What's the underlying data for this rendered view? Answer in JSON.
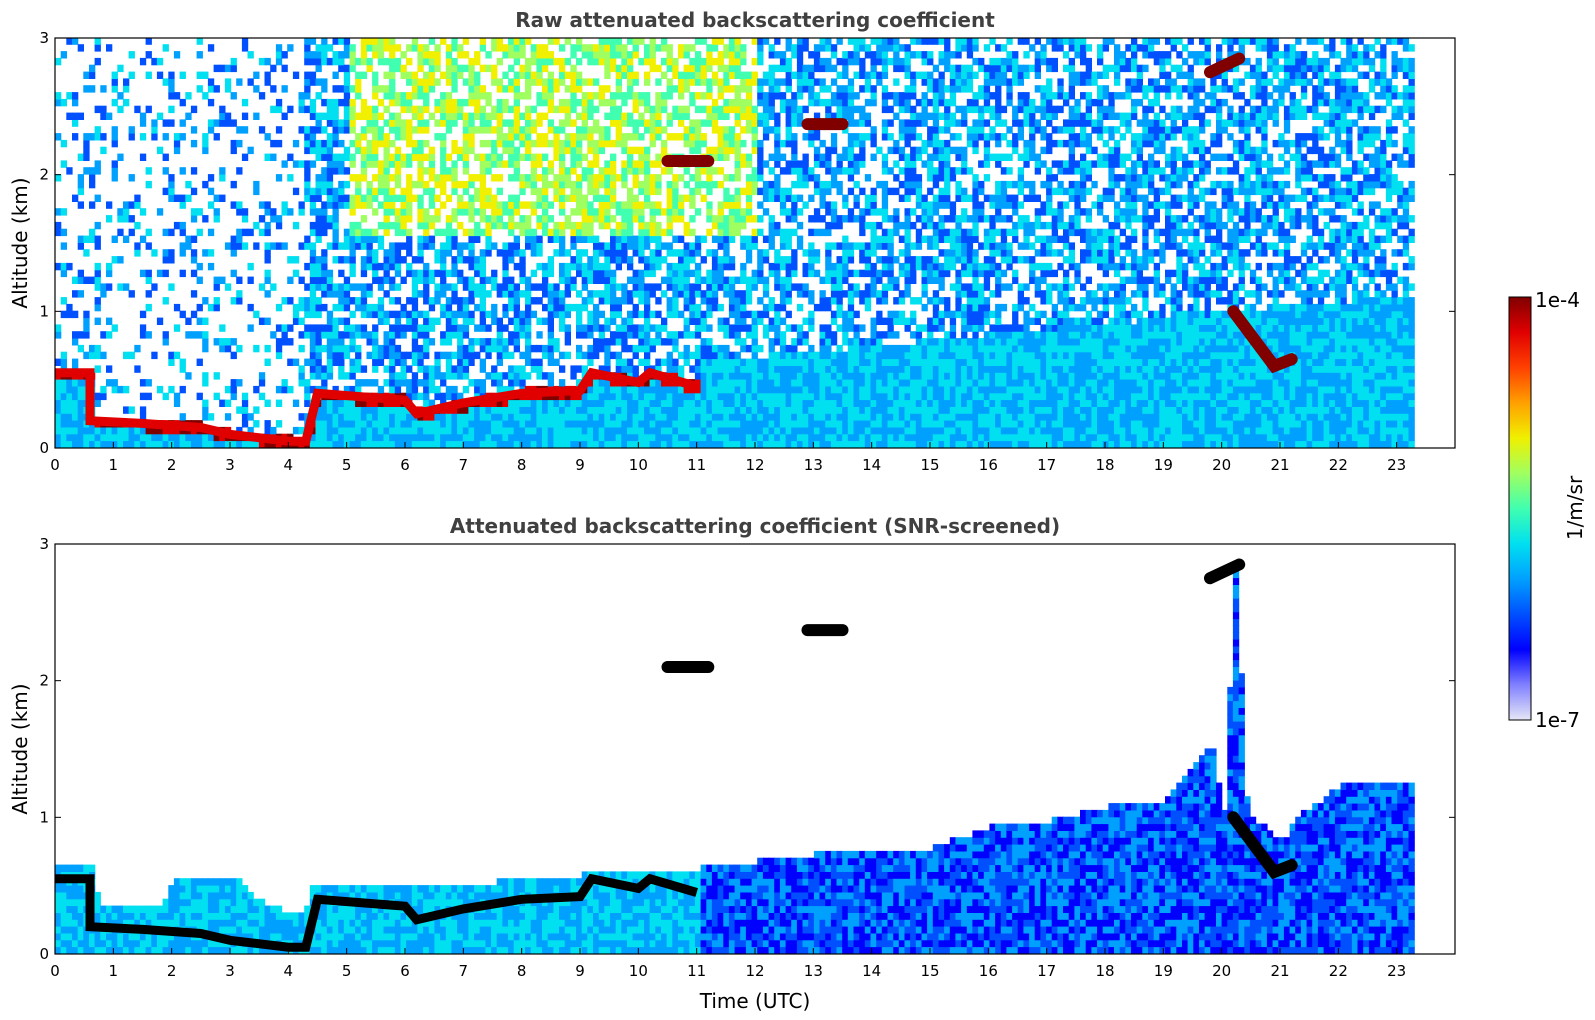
{
  "chart_data": [
    {
      "type": "heatmap",
      "title": "Raw attenuated backscattering coefficient",
      "ylabel": "Altitude (km)",
      "xlabel": "",
      "xlim": [
        0,
        24
      ],
      "ylim": [
        0,
        3
      ],
      "x_ticks": [
        "0",
        "1",
        "2",
        "3",
        "4",
        "5",
        "6",
        "7",
        "8",
        "9",
        "10",
        "11",
        "12",
        "13",
        "14",
        "15",
        "16",
        "17",
        "18",
        "19",
        "20",
        "21",
        "22",
        "23"
      ],
      "y_ticks": [
        "0",
        "1",
        "2",
        "3"
      ],
      "data_extent_hours": [
        0,
        23.3
      ],
      "layers": [
        {
          "name": "boundary-layer-top",
          "points": [
            [
              0,
              0.55
            ],
            [
              0.6,
              0.55
            ],
            [
              0.6,
              0.2
            ],
            [
              1.5,
              0.18
            ],
            [
              2.5,
              0.15
            ],
            [
              3,
              0.1
            ],
            [
              4,
              0.05
            ],
            [
              4.3,
              0.05
            ],
            [
              4.5,
              0.4
            ],
            [
              6,
              0.35
            ],
            [
              6.2,
              0.25
            ],
            [
              7,
              0.33
            ],
            [
              8,
              0.4
            ],
            [
              9,
              0.42
            ],
            [
              9.2,
              0.55
            ],
            [
              10,
              0.48
            ],
            [
              10.2,
              0.55
            ],
            [
              11,
              0.45
            ]
          ]
        },
        {
          "name": "cloud",
          "points": [
            [
              10.5,
              2.1
            ],
            [
              11.2,
              2.1
            ]
          ]
        },
        {
          "name": "cloud",
          "points": [
            [
              12.9,
              2.37
            ],
            [
              13.5,
              2.37
            ]
          ]
        },
        {
          "name": "cloud",
          "points": [
            [
              19.8,
              2.75
            ],
            [
              20.3,
              2.85
            ]
          ]
        },
        {
          "name": "cloud",
          "points": [
            [
              20.2,
              1.0
            ],
            [
              20.9,
              0.6
            ],
            [
              21.2,
              0.65
            ]
          ]
        }
      ]
    },
    {
      "type": "heatmap",
      "title": "Attenuated backscattering coefficient (SNR-screened)",
      "ylabel": "Altitude (km)",
      "xlabel": "Time (UTC)",
      "xlim": [
        0,
        24
      ],
      "ylim": [
        0,
        3
      ],
      "x_ticks": [
        "0",
        "1",
        "2",
        "3",
        "4",
        "5",
        "6",
        "7",
        "8",
        "9",
        "10",
        "11",
        "12",
        "13",
        "14",
        "15",
        "16",
        "17",
        "18",
        "19",
        "20",
        "21",
        "22",
        "23"
      ],
      "y_ticks": [
        "0",
        "1",
        "2",
        "3"
      ],
      "data_extent_hours": [
        0,
        23.3
      ],
      "valid_top": [
        [
          0,
          0.65
        ],
        [
          0.6,
          0.65
        ],
        [
          0.7,
          0.35
        ],
        [
          1.8,
          0.35
        ],
        [
          2,
          0.55
        ],
        [
          3,
          0.55
        ],
        [
          3.5,
          0.35
        ],
        [
          4.2,
          0.25
        ],
        [
          4.4,
          0.5
        ],
        [
          6,
          0.45
        ],
        [
          9,
          0.55
        ],
        [
          10,
          0.6
        ],
        [
          11,
          0.6
        ],
        [
          12,
          0.65
        ],
        [
          14,
          0.75
        ],
        [
          15,
          0.75
        ],
        [
          16,
          0.9
        ],
        [
          17,
          0.95
        ],
        [
          18,
          1.05
        ],
        [
          19,
          1.1
        ],
        [
          19.8,
          1.5
        ],
        [
          20,
          1.0
        ],
        [
          20.2,
          2.9
        ],
        [
          20.4,
          1.0
        ],
        [
          21,
          0.8
        ],
        [
          21.3,
          1.0
        ],
        [
          22,
          1.2
        ],
        [
          23.3,
          1.25
        ]
      ]
    }
  ],
  "colorbar": {
    "label": "1/m/sr",
    "max_label": "1e-4",
    "min_label": "1e-7",
    "colormap": [
      "#e6e6f7",
      "#8080ff",
      "#0000ff",
      "#0050ff",
      "#00a0ff",
      "#00e0f0",
      "#40ffb0",
      "#a0ff60",
      "#f0f000",
      "#ffa000",
      "#ff4000",
      "#e00000",
      "#800000"
    ]
  }
}
